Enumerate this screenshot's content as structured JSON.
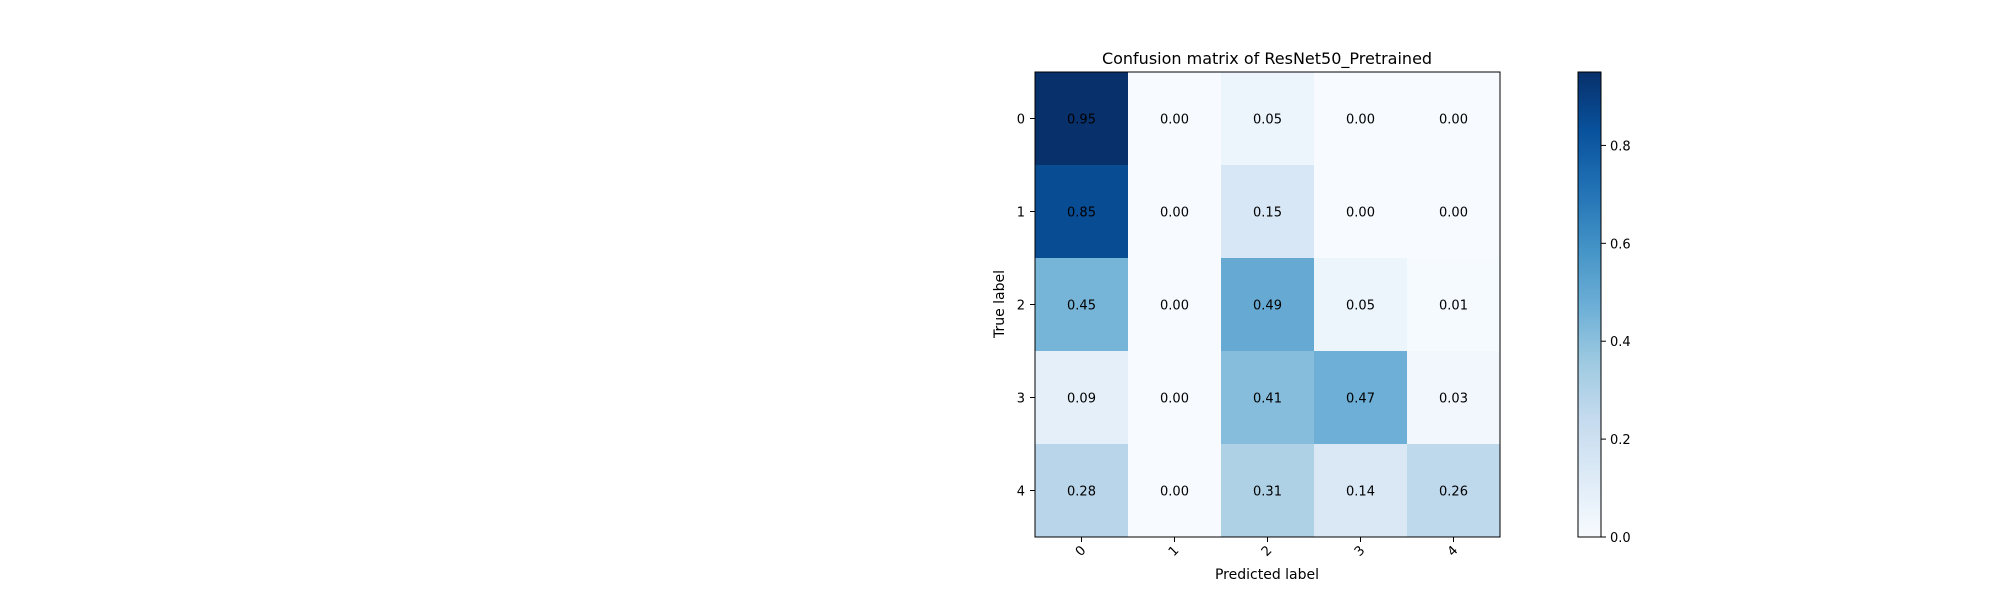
{
  "chart_data": {
    "type": "heatmap",
    "title": "Confusion matrix of ResNet50_Pretrained",
    "xlabel": "Predicted label",
    "ylabel": "True label",
    "x_categories": [
      "0",
      "1",
      "2",
      "3",
      "4"
    ],
    "y_categories": [
      "0",
      "1",
      "2",
      "3",
      "4"
    ],
    "values": [
      [
        0.95,
        0.0,
        0.05,
        0.0,
        0.0
      ],
      [
        0.85,
        0.0,
        0.15,
        0.0,
        0.0
      ],
      [
        0.45,
        0.0,
        0.49,
        0.05,
        0.01
      ],
      [
        0.09,
        0.0,
        0.41,
        0.47,
        0.03
      ],
      [
        0.28,
        0.0,
        0.31,
        0.14,
        0.26
      ]
    ],
    "cell_labels": [
      [
        "0.95",
        "0.00",
        "0.05",
        "0.00",
        "0.00"
      ],
      [
        "0.85",
        "0.00",
        "0.15",
        "0.00",
        "0.00"
      ],
      [
        "0.45",
        "0.00",
        "0.49",
        "0.05",
        "0.01"
      ],
      [
        "0.09",
        "0.00",
        "0.41",
        "0.47",
        "0.03"
      ],
      [
        "0.28",
        "0.00",
        "0.31",
        "0.14",
        "0.26"
      ]
    ],
    "colormap": "Blues",
    "color_range": [
      0.0,
      0.95
    ],
    "colorbar": {
      "ticks": [
        0.0,
        0.2,
        0.4,
        0.6,
        0.8
      ],
      "tick_labels": [
        "0.0",
        "0.2",
        "0.4",
        "0.6",
        "0.8"
      ]
    },
    "grid": false,
    "x_tick_rotation_deg": 45,
    "annotation_text_color": "#000000"
  }
}
